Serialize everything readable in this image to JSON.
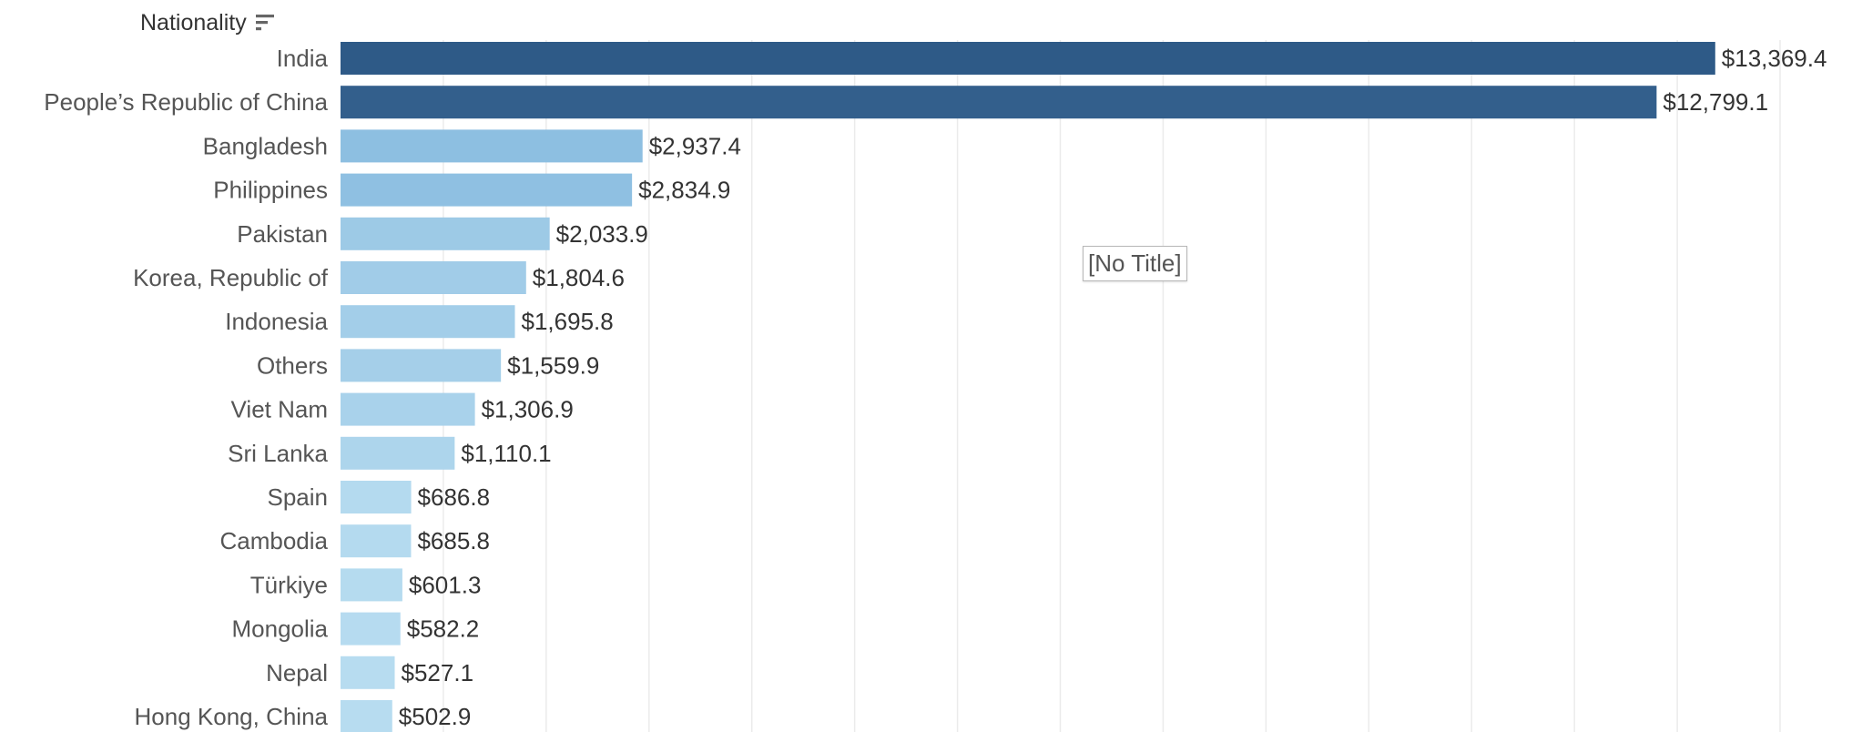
{
  "header": {
    "field_label": "Nationality",
    "sort_icon": "sort-descending-icon"
  },
  "tooltip": {
    "text": "[No Title]"
  },
  "chart_data": {
    "type": "bar",
    "orientation": "horizontal",
    "categories": [
      "India",
      "People’s Republic of China",
      "Bangladesh",
      "Philippines",
      "Pakistan",
      "Korea, Republic of",
      "Indonesia",
      "Others",
      "Viet Nam",
      "Sri Lanka",
      "Spain",
      "Cambodia",
      "Türkiye",
      "Mongolia",
      "Nepal",
      "Hong Kong, China"
    ],
    "values": [
      13369.4,
      12799.1,
      2937.4,
      2834.9,
      2033.9,
      1804.6,
      1695.8,
      1559.9,
      1306.9,
      1110.1,
      686.8,
      685.8,
      601.3,
      582.2,
      527.1,
      502.9
    ],
    "value_labels": [
      "$13,369.4",
      "$12,799.1",
      "$2,937.4",
      "$2,834.9",
      "$2,033.9",
      "$1,804.6",
      "$1,695.8",
      "$1,559.9",
      "$1,306.9",
      "$1,110.1",
      "$686.8",
      "$685.8",
      "$601.3",
      "$582.2",
      "$527.1",
      "$502.9"
    ],
    "title": "",
    "xlabel": "",
    "ylabel": "Nationality",
    "xlim": [
      0,
      14000
    ],
    "grid": true,
    "colors": {
      "high": "#2e5a87",
      "low": "#b7dcf0",
      "mid": "#8bbde0",
      "gridline": "#ebebeb"
    }
  }
}
